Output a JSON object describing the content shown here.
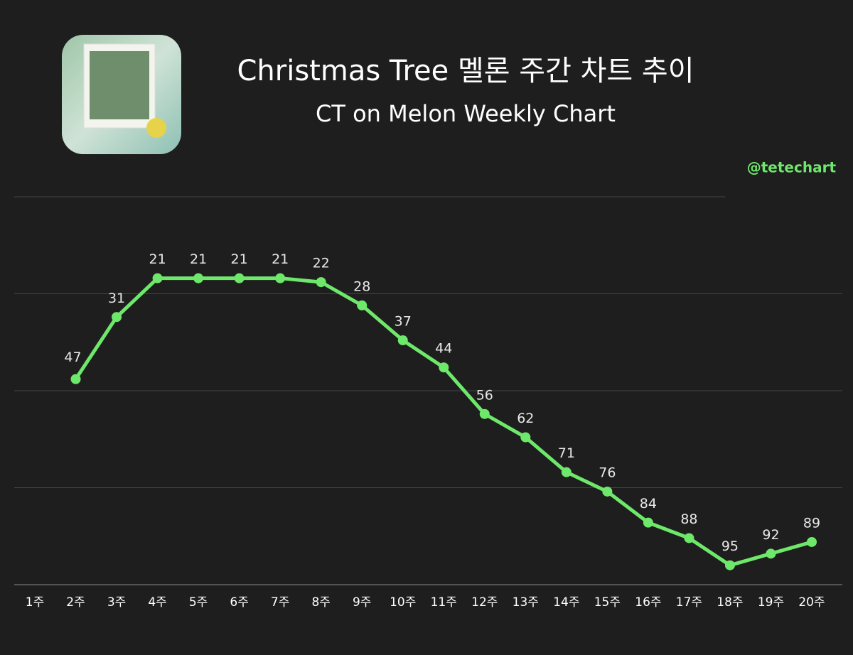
{
  "chart_data": {
    "type": "line",
    "title": "Christmas Tree 멜론 주간 차트 추이",
    "subtitle": "CT on Melon Weekly Chart",
    "watermark": "@tetechart",
    "categories": [
      "1주",
      "2주",
      "3주",
      "4주",
      "5주",
      "6주",
      "7주",
      "8주",
      "9주",
      "10주",
      "11주",
      "12주",
      "13주",
      "14주",
      "15주",
      "16주",
      "17주",
      "18주",
      "19주",
      "20주"
    ],
    "values": [
      null,
      47,
      31,
      21,
      21,
      21,
      21,
      22,
      28,
      37,
      44,
      56,
      62,
      71,
      76,
      84,
      88,
      95,
      92,
      89
    ],
    "color": "#6ee86a",
    "ylim": [
      0,
      100
    ],
    "y_inverted": true,
    "yticks": [
      0,
      25,
      50,
      75,
      100
    ],
    "grid": true
  }
}
